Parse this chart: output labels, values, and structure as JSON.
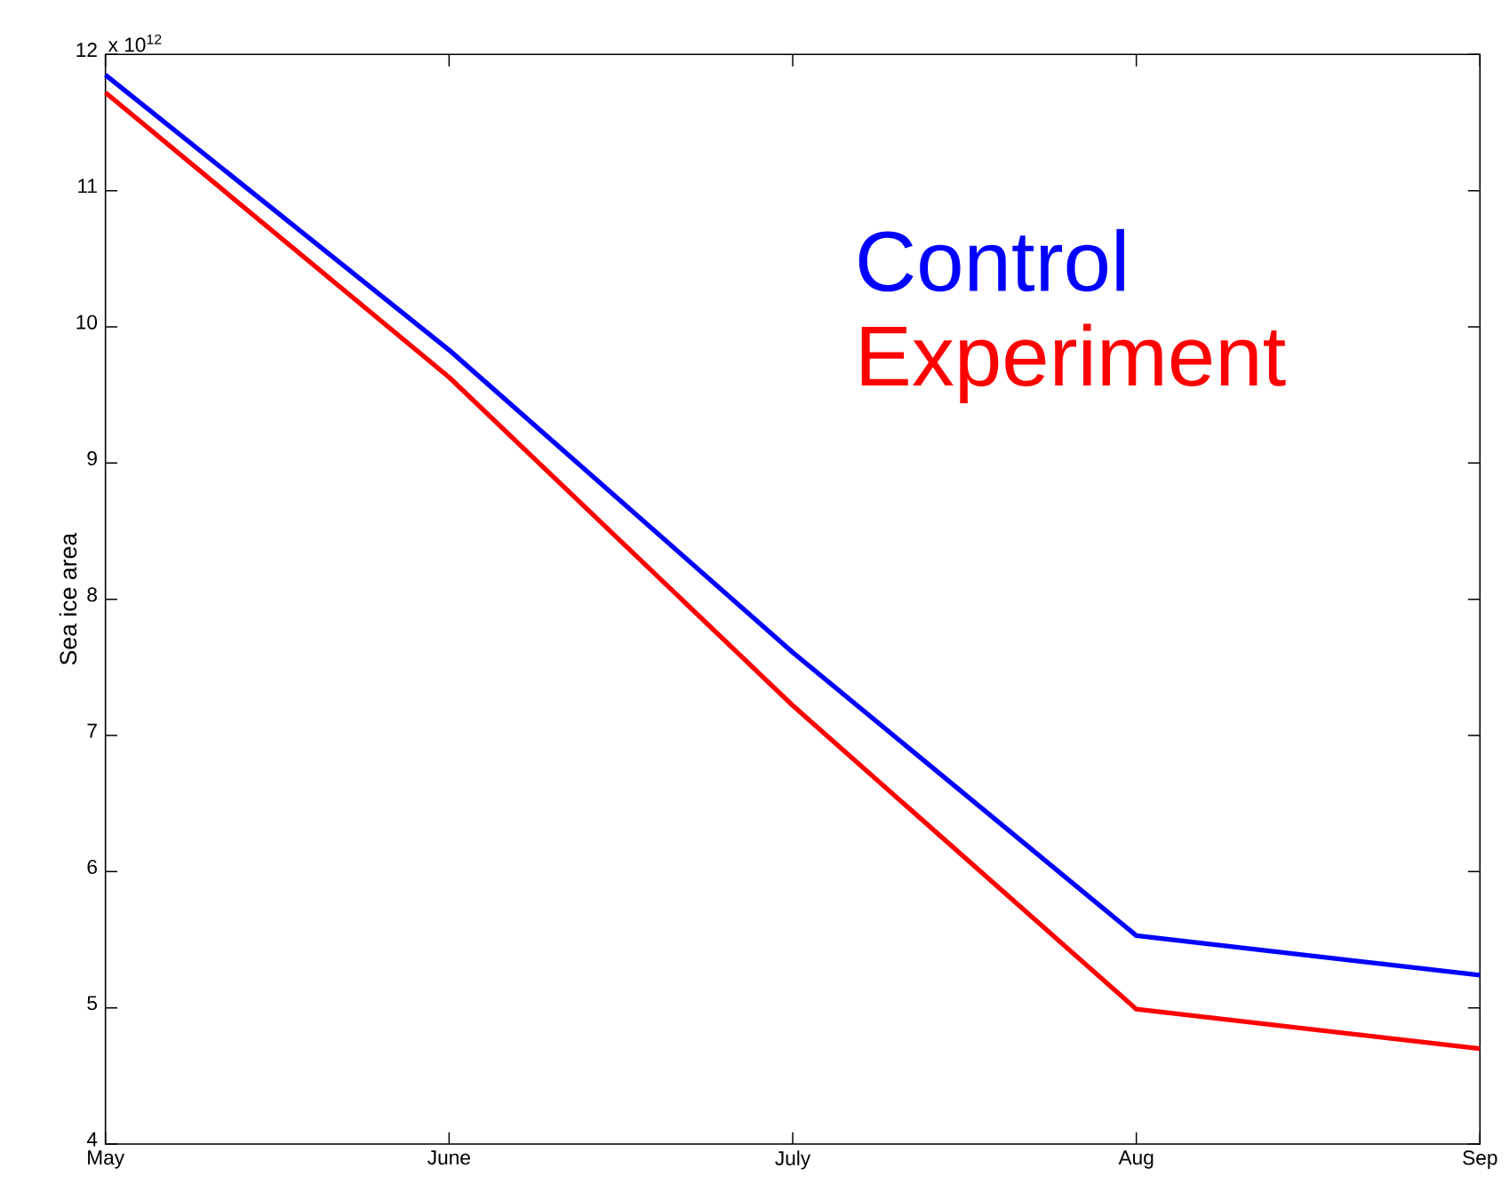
{
  "chart_data": {
    "type": "line",
    "ylabel": "Sea ice area",
    "categories": [
      "May",
      "June",
      "July",
      "Aug",
      "Sep"
    ],
    "series": [
      {
        "name": "Control",
        "color": "#0000ff",
        "values": [
          11.85,
          9.83,
          7.61,
          5.53,
          5.24
        ]
      },
      {
        "name": "Experiment",
        "color": "#ff0000",
        "values": [
          11.72,
          9.63,
          7.22,
          4.99,
          4.7
        ]
      }
    ],
    "ylim": [
      4,
      12
    ],
    "yticks": [
      4,
      5,
      6,
      7,
      8,
      9,
      10,
      11,
      12
    ],
    "annotations": [
      "x 10$^{12}$"
    ],
    "legend": "top right",
    "grid": false,
    "marker": "none",
    "line_style": "solid"
  }
}
